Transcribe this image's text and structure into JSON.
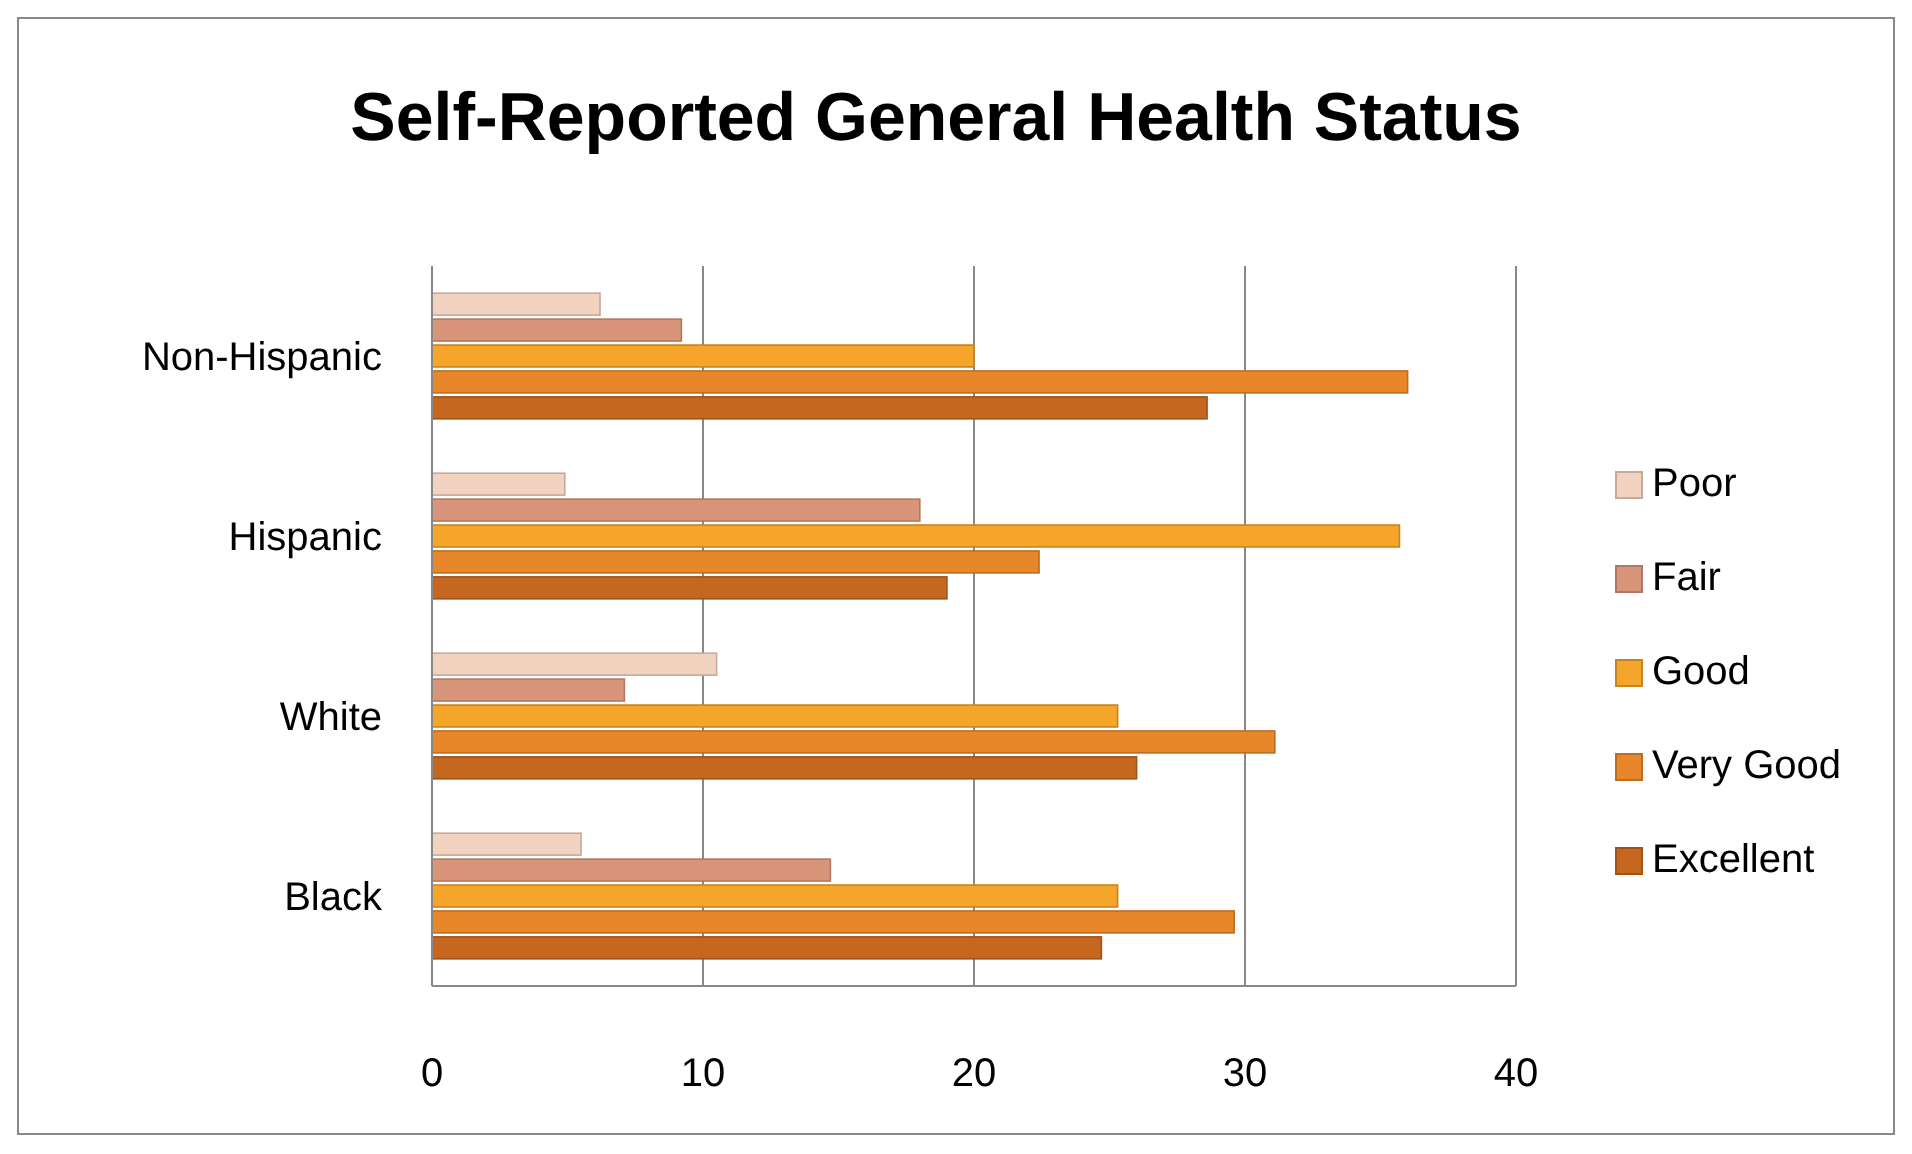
{
  "chart_data": {
    "type": "bar",
    "orientation": "horizontal",
    "title": "Self-Reported General Health Status",
    "categories": [
      "Non-Hispanic",
      "Hispanic",
      "White",
      "Black"
    ],
    "series": [
      {
        "name": "Poor",
        "color": "#f2d3c0",
        "values": [
          6.2,
          4.9,
          10.5,
          5.5
        ]
      },
      {
        "name": "Fair",
        "color": "#d9957a",
        "values": [
          9.2,
          18.0,
          7.1,
          14.7
        ]
      },
      {
        "name": "Good",
        "color": "#f4a52a",
        "values": [
          20.0,
          35.7,
          25.3,
          25.3
        ]
      },
      {
        "name": "Very Good",
        "color": "#e8872a",
        "values": [
          36.0,
          22.4,
          31.1,
          29.6
        ]
      },
      {
        "name": "Excellent",
        "color": "#c6671f",
        "values": [
          28.6,
          19.0,
          26.0,
          24.7
        ]
      }
    ],
    "xlim": [
      0,
      40
    ],
    "xticks": [
      0,
      10,
      20,
      30,
      40
    ],
    "grid": "x",
    "legend": "right"
  }
}
